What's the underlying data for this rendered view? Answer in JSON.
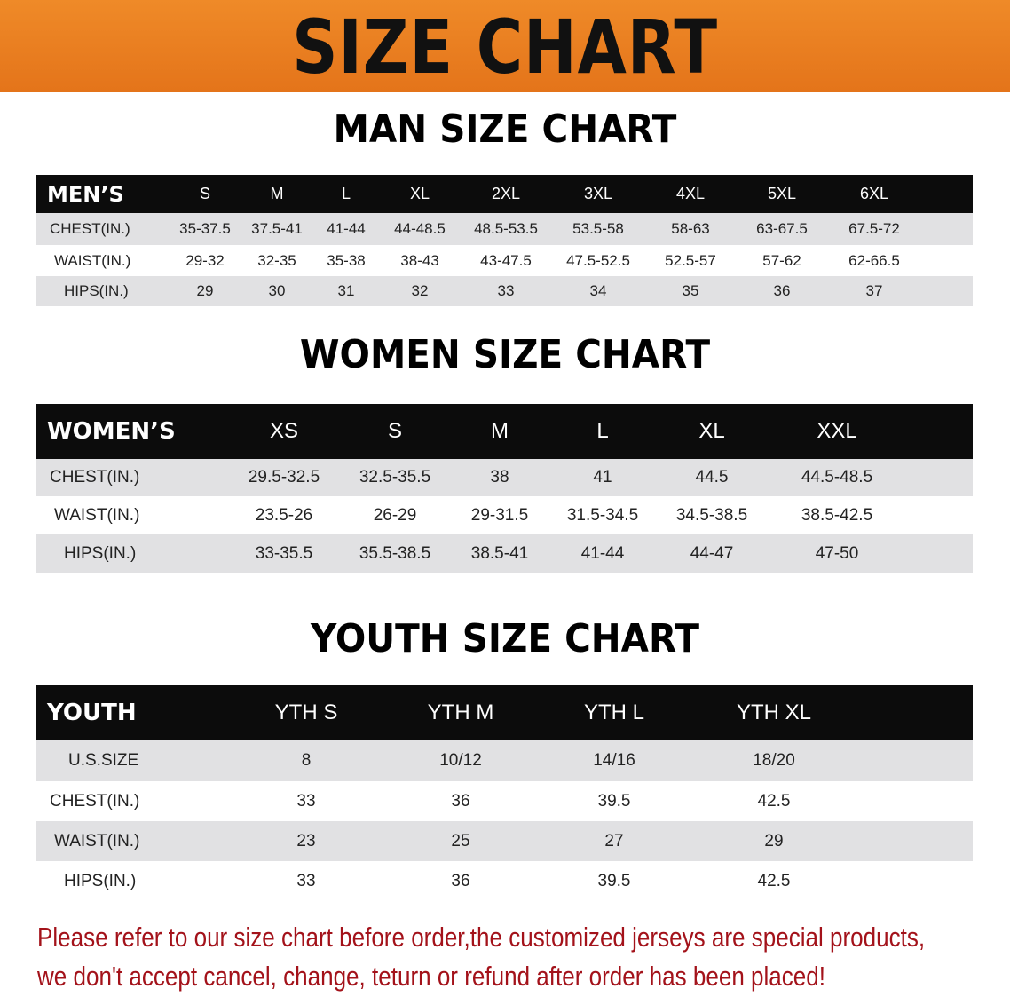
{
  "banner": {
    "title": "SIZE CHART",
    "color": "#e97f22"
  },
  "men": {
    "title": "MAN SIZE CHART",
    "header": [
      "MEN’S",
      "S",
      "M",
      "L",
      "XL",
      "2XL",
      "3XL",
      "4XL",
      "5XL",
      "6XL"
    ],
    "rows": [
      [
        "CHEST(IN.)",
        "35-37.5",
        "37.5-41",
        "41-44",
        "44-48.5",
        "48.5-53.5",
        "53.5-58",
        "58-63",
        "63-67.5",
        "67.5-72"
      ],
      [
        "WAIST(IN.)",
        "29-32",
        "32-35",
        "35-38",
        "38-43",
        "43-47.5",
        "47.5-52.5",
        "52.5-57",
        "57-62",
        "62-66.5"
      ],
      [
        "HIPS(IN.)",
        "29",
        "30",
        "31",
        "32",
        "33",
        "34",
        "35",
        "36",
        "37"
      ]
    ]
  },
  "women": {
    "title": "WOMEN SIZE CHART",
    "header": [
      "WOMEN’S",
      "XS",
      "S",
      "M",
      "L",
      "XL",
      "XXL"
    ],
    "rows": [
      [
        "CHEST(IN.)",
        "29.5-32.5",
        "32.5-35.5",
        "38",
        "41",
        "44.5",
        "44.5-48.5"
      ],
      [
        "WAIST(IN.)",
        "23.5-26",
        "26-29",
        "29-31.5",
        "31.5-34.5",
        "34.5-38.5",
        "38.5-42.5"
      ],
      [
        "HIPS(IN.)",
        "33-35.5",
        "35.5-38.5",
        "38.5-41",
        "41-44",
        "44-47",
        "47-50"
      ]
    ]
  },
  "youth": {
    "title": "YOUTH SIZE CHART",
    "header": [
      "YOUTH",
      "YTH S",
      "YTH M",
      "YTH L",
      "YTH XL"
    ],
    "rows": [
      [
        "U.S.SIZE",
        "8",
        "10/12",
        "14/16",
        "18/20"
      ],
      [
        "CHEST(IN.)",
        "33",
        "36",
        "39.5",
        "42.5"
      ],
      [
        "WAIST(IN.)",
        "23",
        "25",
        "27",
        "29"
      ],
      [
        "HIPS(IN.)",
        "33",
        "36",
        "39.5",
        "42.5"
      ]
    ]
  },
  "note": {
    "line1": "Please refer to our size chart before order,the customized jerseys are special products,",
    "line2": "we don't accept cancel, change, teturn or refund after order has been placed!",
    "color": "#a3121a"
  }
}
